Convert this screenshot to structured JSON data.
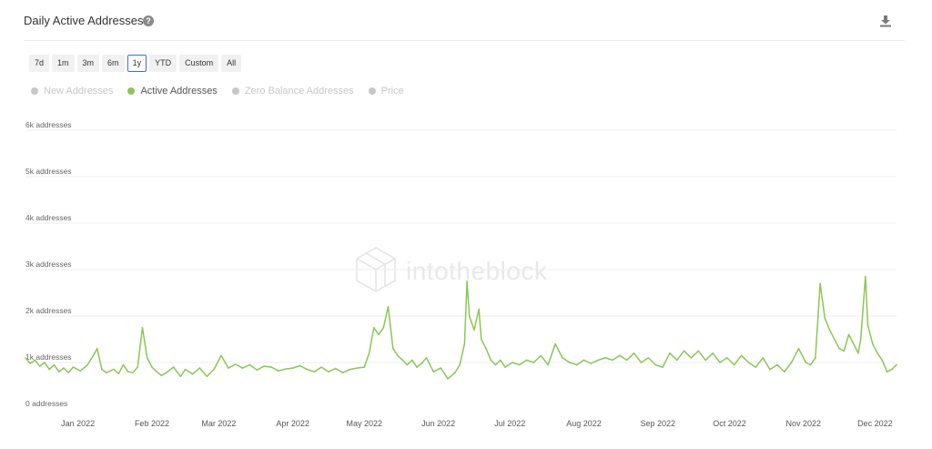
{
  "header": {
    "title": "Daily Active Addresses"
  },
  "ranges": [
    {
      "label": "7d",
      "active": false
    },
    {
      "label": "1m",
      "active": false
    },
    {
      "label": "3m",
      "active": false
    },
    {
      "label": "6m",
      "active": false
    },
    {
      "label": "1y",
      "active": true
    },
    {
      "label": "YTD",
      "active": false
    },
    {
      "label": "Custom",
      "active": false
    },
    {
      "label": "All",
      "active": false
    }
  ],
  "legend": [
    {
      "label": "New Addresses",
      "enabled": false,
      "color": "#c7c7c7"
    },
    {
      "label": "Active Addresses",
      "enabled": true,
      "color": "#8cc654"
    },
    {
      "label": "Zero Balance Addresses",
      "enabled": false,
      "color": "#c7c7c7"
    },
    {
      "label": "Price",
      "enabled": false,
      "color": "#c7c7c7"
    }
  ],
  "watermark": "intotheblock",
  "chart_data": {
    "type": "line",
    "title": "Daily Active Addresses",
    "ylim": [
      0,
      6000
    ],
    "y_ticks": [
      {
        "value": 0,
        "label": "0 addresses"
      },
      {
        "value": 1000,
        "label": "1k addresses"
      },
      {
        "value": 2000,
        "label": "2k addresses"
      },
      {
        "value": 3000,
        "label": "3k addresses"
      },
      {
        "value": 4000,
        "label": "4k addresses"
      },
      {
        "value": 5000,
        "label": "5k addresses"
      },
      {
        "value": 6000,
        "label": "6k addresses"
      }
    ],
    "xlim": [
      "2021-12-10",
      "2022-12-10"
    ],
    "x_ticks": [
      {
        "date": "2022-01-01",
        "label": "Jan 2022"
      },
      {
        "date": "2022-02-01",
        "label": "Feb 2022"
      },
      {
        "date": "2022-03-01",
        "label": "Mar 2022"
      },
      {
        "date": "2022-04-01",
        "label": "Apr 2022"
      },
      {
        "date": "2022-05-01",
        "label": "May 2022"
      },
      {
        "date": "2022-06-01",
        "label": "Jun 2022"
      },
      {
        "date": "2022-07-01",
        "label": "Jul 2022"
      },
      {
        "date": "2022-08-01",
        "label": "Aug 2022"
      },
      {
        "date": "2022-09-01",
        "label": "Sep 2022"
      },
      {
        "date": "2022-10-01",
        "label": "Oct 2022"
      },
      {
        "date": "2022-11-01",
        "label": "Nov 2022"
      },
      {
        "date": "2022-12-01",
        "label": "Dec 2022"
      }
    ],
    "grid": true,
    "legend_position": "top-left",
    "series": [
      {
        "name": "Active Addresses",
        "color": "#8cc654",
        "points": [
          [
            "2021-12-10",
            1100
          ],
          [
            "2021-12-12",
            980
          ],
          [
            "2021-12-14",
            1050
          ],
          [
            "2021-12-16",
            920
          ],
          [
            "2021-12-18",
            1000
          ],
          [
            "2021-12-20",
            850
          ],
          [
            "2021-12-22",
            950
          ],
          [
            "2021-12-24",
            800
          ],
          [
            "2021-12-26",
            880
          ],
          [
            "2021-12-28",
            780
          ],
          [
            "2021-12-30",
            900
          ],
          [
            "2022-01-02",
            820
          ],
          [
            "2022-01-05",
            950
          ],
          [
            "2022-01-08",
            1200
          ],
          [
            "2022-01-09",
            1300
          ],
          [
            "2022-01-11",
            850
          ],
          [
            "2022-01-13",
            780
          ],
          [
            "2022-01-16",
            850
          ],
          [
            "2022-01-18",
            760
          ],
          [
            "2022-01-20",
            950
          ],
          [
            "2022-01-22",
            800
          ],
          [
            "2022-01-24",
            780
          ],
          [
            "2022-01-26",
            900
          ],
          [
            "2022-01-28",
            1750
          ],
          [
            "2022-01-30",
            1100
          ],
          [
            "2022-02-01",
            900
          ],
          [
            "2022-02-03",
            800
          ],
          [
            "2022-02-05",
            720
          ],
          [
            "2022-02-07",
            780
          ],
          [
            "2022-02-10",
            900
          ],
          [
            "2022-02-13",
            700
          ],
          [
            "2022-02-15",
            850
          ],
          [
            "2022-02-18",
            750
          ],
          [
            "2022-02-21",
            880
          ],
          [
            "2022-02-24",
            700
          ],
          [
            "2022-02-27",
            850
          ],
          [
            "2022-03-02",
            1150
          ],
          [
            "2022-03-05",
            880
          ],
          [
            "2022-03-08",
            960
          ],
          [
            "2022-03-11",
            880
          ],
          [
            "2022-03-14",
            950
          ],
          [
            "2022-03-17",
            840
          ],
          [
            "2022-03-20",
            920
          ],
          [
            "2022-03-23",
            900
          ],
          [
            "2022-03-26",
            820
          ],
          [
            "2022-03-29",
            860
          ],
          [
            "2022-04-01",
            880
          ],
          [
            "2022-04-04",
            930
          ],
          [
            "2022-04-07",
            850
          ],
          [
            "2022-04-10",
            800
          ],
          [
            "2022-04-13",
            900
          ],
          [
            "2022-04-16",
            800
          ],
          [
            "2022-04-19",
            870
          ],
          [
            "2022-04-22",
            780
          ],
          [
            "2022-04-25",
            850
          ],
          [
            "2022-04-28",
            880
          ],
          [
            "2022-05-01",
            900
          ],
          [
            "2022-05-03",
            1200
          ],
          [
            "2022-05-05",
            1750
          ],
          [
            "2022-05-07",
            1600
          ],
          [
            "2022-05-09",
            1750
          ],
          [
            "2022-05-11",
            2200
          ],
          [
            "2022-05-13",
            1300
          ],
          [
            "2022-05-15",
            1150
          ],
          [
            "2022-05-17",
            1050
          ],
          [
            "2022-05-19",
            950
          ],
          [
            "2022-05-21",
            1050
          ],
          [
            "2022-05-23",
            900
          ],
          [
            "2022-05-25",
            980
          ],
          [
            "2022-05-27",
            1100
          ],
          [
            "2022-05-30",
            800
          ],
          [
            "2022-06-02",
            880
          ],
          [
            "2022-06-05",
            650
          ],
          [
            "2022-06-08",
            780
          ],
          [
            "2022-06-10",
            950
          ],
          [
            "2022-06-12",
            1400
          ],
          [
            "2022-06-13",
            2750
          ],
          [
            "2022-06-14",
            2000
          ],
          [
            "2022-06-16",
            1700
          ],
          [
            "2022-06-18",
            2150
          ],
          [
            "2022-06-19",
            1500
          ],
          [
            "2022-06-21",
            1300
          ],
          [
            "2022-06-23",
            1050
          ],
          [
            "2022-06-25",
            950
          ],
          [
            "2022-06-27",
            1050
          ],
          [
            "2022-06-29",
            900
          ],
          [
            "2022-07-02",
            1000
          ],
          [
            "2022-07-05",
            950
          ],
          [
            "2022-07-08",
            1050
          ],
          [
            "2022-07-11",
            1000
          ],
          [
            "2022-07-14",
            1150
          ],
          [
            "2022-07-17",
            950
          ],
          [
            "2022-07-20",
            1400
          ],
          [
            "2022-07-23",
            1100
          ],
          [
            "2022-07-26",
            1000
          ],
          [
            "2022-07-29",
            950
          ],
          [
            "2022-08-01",
            1050
          ],
          [
            "2022-08-04",
            980
          ],
          [
            "2022-08-07",
            1050
          ],
          [
            "2022-08-10",
            1100
          ],
          [
            "2022-08-13",
            1050
          ],
          [
            "2022-08-16",
            1150
          ],
          [
            "2022-08-19",
            1050
          ],
          [
            "2022-08-22",
            1200
          ],
          [
            "2022-08-25",
            1000
          ],
          [
            "2022-08-28",
            1100
          ],
          [
            "2022-08-31",
            950
          ],
          [
            "2022-09-03",
            900
          ],
          [
            "2022-09-06",
            1200
          ],
          [
            "2022-09-09",
            1050
          ],
          [
            "2022-09-12",
            1250
          ],
          [
            "2022-09-15",
            1100
          ],
          [
            "2022-09-18",
            1250
          ],
          [
            "2022-09-21",
            1050
          ],
          [
            "2022-09-24",
            1200
          ],
          [
            "2022-09-27",
            1000
          ],
          [
            "2022-09-30",
            1100
          ],
          [
            "2022-10-03",
            950
          ],
          [
            "2022-10-06",
            1150
          ],
          [
            "2022-10-09",
            1000
          ],
          [
            "2022-10-12",
            900
          ],
          [
            "2022-10-15",
            1100
          ],
          [
            "2022-10-18",
            850
          ],
          [
            "2022-10-21",
            950
          ],
          [
            "2022-10-24",
            800
          ],
          [
            "2022-10-27",
            1000
          ],
          [
            "2022-10-30",
            1300
          ],
          [
            "2022-11-02",
            1000
          ],
          [
            "2022-11-04",
            950
          ],
          [
            "2022-11-06",
            1100
          ],
          [
            "2022-11-08",
            2700
          ],
          [
            "2022-11-10",
            1950
          ],
          [
            "2022-11-12",
            1700
          ],
          [
            "2022-11-14",
            1500
          ],
          [
            "2022-11-16",
            1300
          ],
          [
            "2022-11-18",
            1250
          ],
          [
            "2022-11-20",
            1600
          ],
          [
            "2022-11-22",
            1400
          ],
          [
            "2022-11-24",
            1200
          ],
          [
            "2022-11-25",
            1500
          ],
          [
            "2022-11-27",
            2850
          ],
          [
            "2022-11-28",
            1800
          ],
          [
            "2022-11-30",
            1400
          ],
          [
            "2022-12-02",
            1200
          ],
          [
            "2022-12-04",
            1050
          ],
          [
            "2022-12-06",
            800
          ],
          [
            "2022-12-08",
            850
          ],
          [
            "2022-12-10",
            950
          ]
        ]
      }
    ]
  }
}
